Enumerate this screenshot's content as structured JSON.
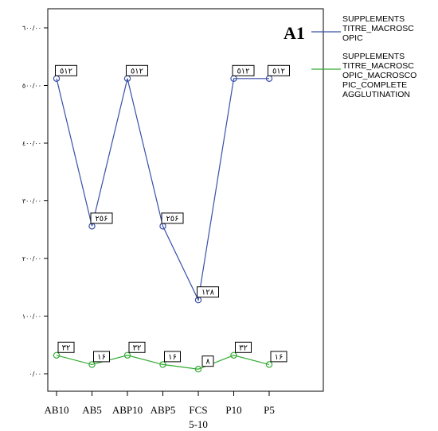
{
  "chart_data": {
    "type": "line",
    "panel_label": "A1",
    "categories": [
      "AB10",
      "AB5",
      "ABP10",
      "ABP5",
      "FCS",
      "P10",
      "P5"
    ],
    "x_axis_sublabel": "5-10",
    "ylim": [
      0,
      640
    ],
    "y_ticks": [
      0,
      100,
      200,
      300,
      400,
      500,
      600
    ],
    "y_tick_labels": [
      "٠/٠٠",
      "١٠٠/٠٠",
      "٢٠٠/٠٠",
      "٣٠٠/٠٠",
      "٤٠٠/٠٠",
      "٥٠٠/٠٠",
      "٦٠٠/٠٠"
    ],
    "grid": false,
    "legend_position": "right",
    "series": [
      {
        "name": "SUPPLEMENTS TITRE_MACROSCOPIC",
        "legend_lines": [
          "SUPPLEMENTS",
          "TITRE_MACROSC",
          "OPIC"
        ],
        "color": "#3a50a8",
        "values": [
          512,
          256,
          512,
          256,
          128,
          512,
          512
        ],
        "labels": [
          "٥١٢",
          "٢٥۶",
          "٥١٢",
          "٢٥۶",
          "١٢٨",
          "٥١٢",
          "٥١٢"
        ]
      },
      {
        "name": "SUPPLEMENTS TITRE_MACROSCOPIC_MACROSCOPIC_COMPLETE AGGLUTINATION",
        "legend_lines": [
          "SUPPLEMENTS",
          "TITRE_MACROSC",
          "OPIC_MACROSCO",
          "PIC_COMPLETE",
          "AGGLUTINATION"
        ],
        "color": "#33aa33",
        "values": [
          32,
          16,
          32,
          16,
          8,
          32,
          16
        ],
        "labels": [
          "٣٢",
          "١۶",
          "٣٢",
          "١۶",
          "٨",
          "٣٢",
          "١۶"
        ]
      }
    ]
  }
}
